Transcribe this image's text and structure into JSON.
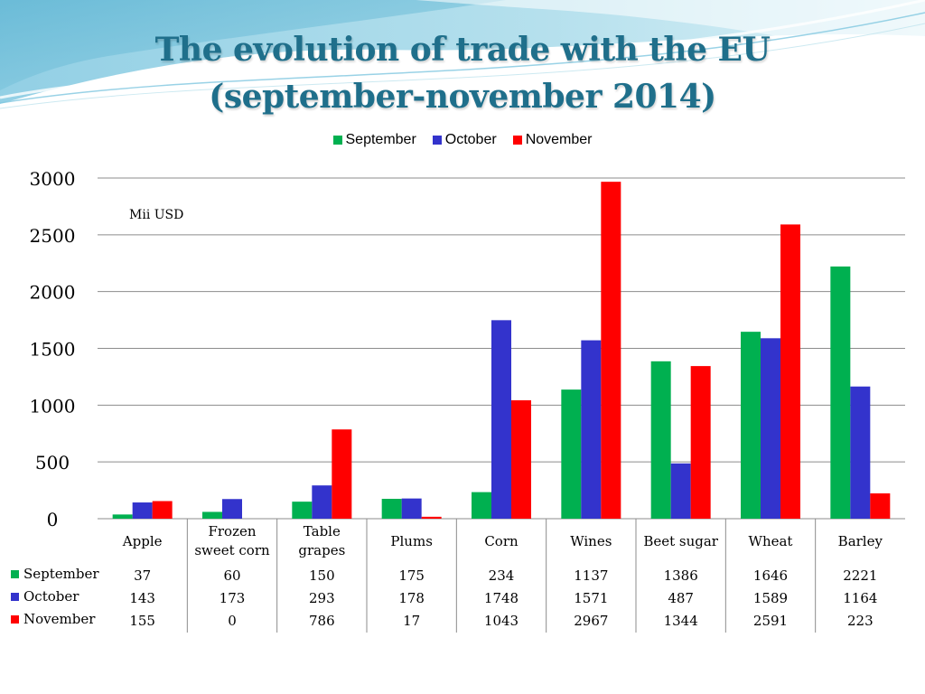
{
  "slide": {
    "title_line1": "The evolution of trade with the EU",
    "title_line2": "(september-november 2014)",
    "unit_note": "Mii USD"
  },
  "colors": {
    "title": "#1f6f8b",
    "grid": "#8c8c8c"
  },
  "chart_data": {
    "type": "bar",
    "categories": [
      "Apple",
      "Frozen sweet corn",
      "Table grapes",
      "Plums",
      "Corn",
      "Wines",
      "Beet sugar",
      "Wheat",
      "Barley"
    ],
    "category_lines": [
      [
        "Apple"
      ],
      [
        "Frozen",
        "sweet corn"
      ],
      [
        "Table",
        "grapes"
      ],
      [
        "Plums"
      ],
      [
        "Corn"
      ],
      [
        "Wines"
      ],
      [
        "Beet sugar"
      ],
      [
        "Wheat"
      ],
      [
        "Barley"
      ]
    ],
    "series": [
      {
        "name": "September",
        "color": "#00b050",
        "values": [
          37,
          60,
          150,
          175,
          234,
          1137,
          1386,
          1646,
          2221
        ]
      },
      {
        "name": "October",
        "color": "#3333cc",
        "values": [
          143,
          173,
          293,
          178,
          1748,
          1571,
          487,
          1589,
          1164
        ]
      },
      {
        "name": "November",
        "color": "#ff0000",
        "values": [
          155,
          0,
          786,
          17,
          1043,
          2967,
          1344,
          2591,
          223
        ]
      }
    ],
    "ylim": [
      0,
      3000
    ],
    "yticks": [
      0,
      500,
      1000,
      1500,
      2000,
      2500,
      3000
    ],
    "ylabel": "Mii USD",
    "grid": true,
    "legend": "top",
    "data_table": true
  }
}
